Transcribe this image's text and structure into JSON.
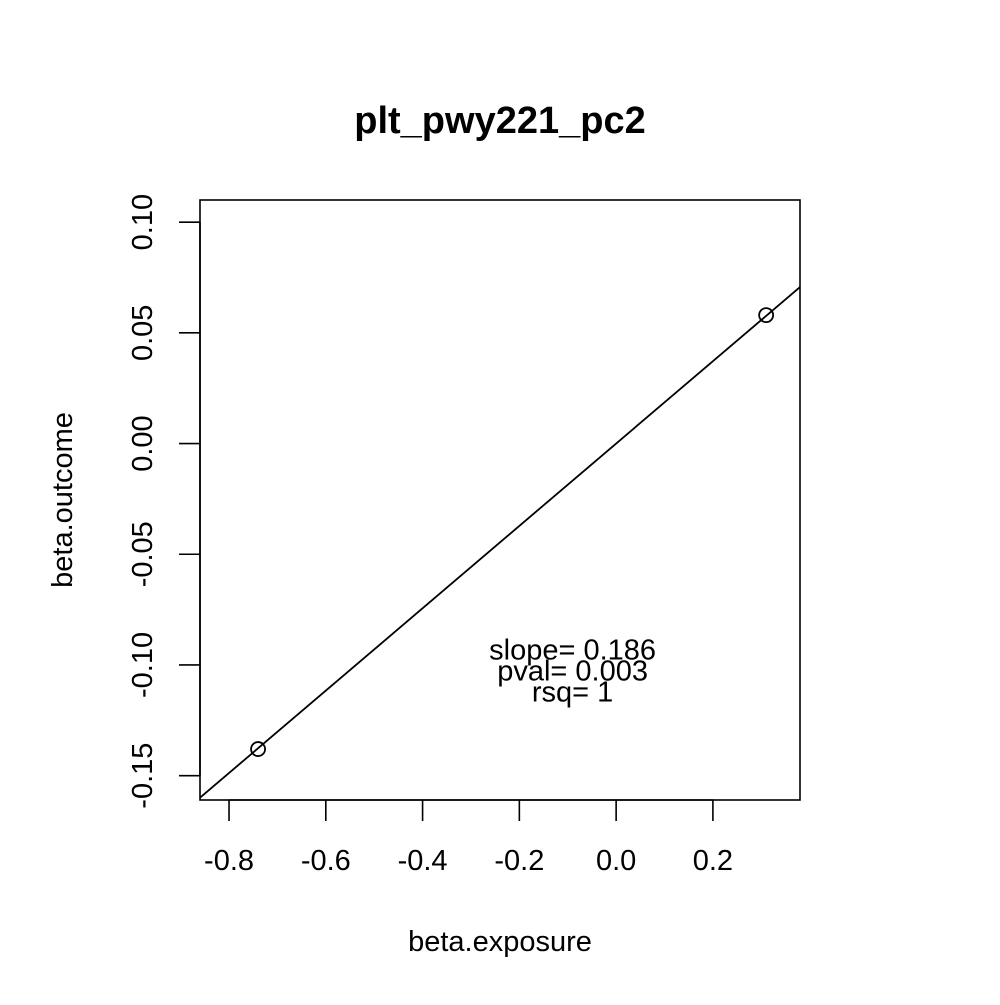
{
  "chart_data": {
    "type": "scatter",
    "title": "plt_pwy221_pc2",
    "xlabel": "beta.exposure",
    "ylabel": "beta.outcome",
    "xlim": [
      -0.86,
      0.38
    ],
    "ylim": [
      -0.161,
      0.11
    ],
    "xticks": [
      -0.8,
      -0.6,
      -0.4,
      -0.2,
      0.0,
      0.2
    ],
    "xtick_labels": [
      "-0.8",
      "-0.6",
      "-0.4",
      "-0.2",
      "0.0",
      "0.2"
    ],
    "yticks": [
      -0.15,
      -0.1,
      -0.05,
      0.0,
      0.05,
      0.1
    ],
    "ytick_labels": [
      "-0.15",
      "-0.10",
      "-0.05",
      "0.00",
      "0.05",
      "0.10"
    ],
    "grid": false,
    "points": [
      {
        "x": -0.74,
        "y": -0.138
      },
      {
        "x": 0.31,
        "y": 0.058
      }
    ],
    "fit_line": {
      "intercept": 0.0,
      "slope": 0.186
    },
    "annotations": [
      "slope= 0.186",
      "pval= 0.003",
      "rsq= 1"
    ],
    "annotation_anchor": {
      "x": -0.09,
      "y": -0.1035
    }
  }
}
